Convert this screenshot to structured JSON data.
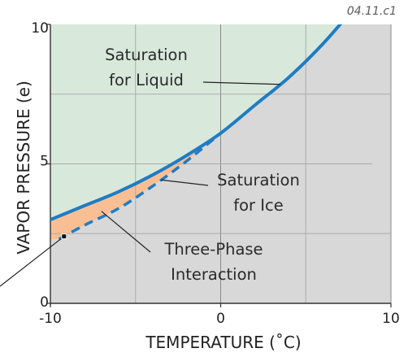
{
  "figure_id": "04.11.c1",
  "chart_data": {
    "type": "line",
    "xlabel": "TEMPERATURE (˚C)",
    "ylabel": "VAPOR PRESSURE (e)",
    "xlim": [
      -10,
      10
    ],
    "ylim": [
      0,
      10
    ],
    "x_ticks": [
      "-10",
      "0",
      "10"
    ],
    "y_ticks": [
      "0",
      "5",
      "10"
    ],
    "grid": true,
    "series": [
      {
        "name": "Saturation for Liquid",
        "style": "solid",
        "color": "#1f7cc4",
        "x": [
          -10,
          -8,
          -6,
          -4,
          -2,
          0,
          2,
          4,
          6,
          8
        ],
        "y": [
          3.0,
          3.5,
          4.0,
          4.6,
          5.3,
          6.1,
          7.1,
          8.1,
          9.3,
          10.7
        ]
      },
      {
        "name": "Saturation for Ice",
        "style": "dashed",
        "color": "#1f7cc4",
        "x": [
          -9.5,
          -8,
          -6,
          -4,
          -2,
          0
        ],
        "y": [
          2.3,
          2.8,
          3.4,
          4.2,
          5.1,
          6.1
        ]
      }
    ],
    "regions": [
      {
        "name": "liquid",
        "color": "#d8e9dc"
      },
      {
        "name": "three-phase",
        "color": "#f9bf93"
      },
      {
        "name": "vapor",
        "color": "#d8d8d8"
      }
    ],
    "annotations": [
      {
        "lines": [
          "Saturation",
          "for Liquid"
        ],
        "target_series": 0,
        "target_x": 3.5
      },
      {
        "lines": [
          "Saturation",
          "for Ice"
        ],
        "target_series": 1,
        "target_x": -3.5
      },
      {
        "lines": [
          "Three-Phase",
          "Interaction"
        ],
        "target_x": -7,
        "target_y": 3.3
      }
    ],
    "marker_point": {
      "x": -9.2,
      "y": 2.4
    }
  }
}
